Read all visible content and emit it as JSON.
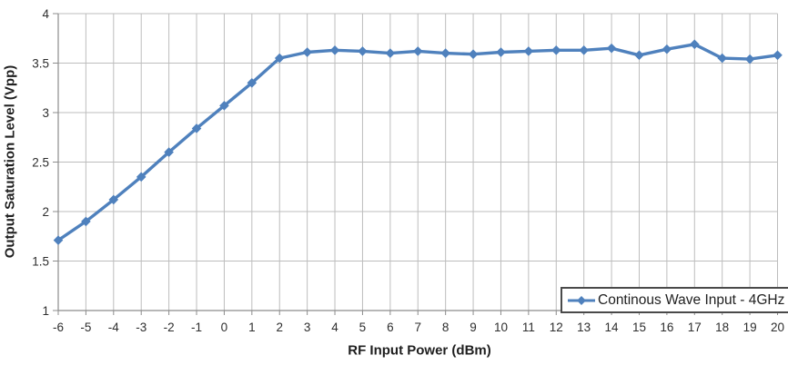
{
  "chart_data": {
    "type": "line",
    "title": "",
    "xlabel": "RF Input Power (dBm)",
    "ylabel": "Output Saturation Level (Vpp)",
    "x": [
      -6,
      -5,
      -4,
      -3,
      -2,
      -1,
      0,
      1,
      2,
      3,
      4,
      5,
      6,
      7,
      8,
      9,
      10,
      11,
      12,
      13,
      14,
      15,
      16,
      17,
      18,
      19,
      20
    ],
    "series": [
      {
        "name": "Continous Wave Input - 4GHz",
        "marker": "diamond",
        "values": [
          1.71,
          1.9,
          2.12,
          2.35,
          2.6,
          2.84,
          3.07,
          3.3,
          3.55,
          3.61,
          3.63,
          3.62,
          3.6,
          3.62,
          3.6,
          3.59,
          3.61,
          3.62,
          3.63,
          3.63,
          3.65,
          3.58,
          3.64,
          3.69,
          3.55,
          3.54,
          3.58
        ]
      }
    ],
    "xlim": [
      -6,
      20
    ],
    "ylim": [
      1,
      4
    ],
    "xticks": [
      -6,
      -5,
      -4,
      -3,
      -2,
      -1,
      0,
      1,
      2,
      3,
      4,
      5,
      6,
      7,
      8,
      9,
      10,
      11,
      12,
      13,
      14,
      15,
      16,
      17,
      18,
      19,
      20
    ],
    "yticks": [
      1,
      1.5,
      2,
      2.5,
      3,
      3.5,
      4
    ],
    "grid": "both",
    "legend": {
      "label": "Continous Wave Input - 4GHz",
      "position": "inside-bottom-right"
    },
    "colors": {
      "series": "#4F81BD",
      "gridline": "#BDBDBD",
      "axis": "#8C8C8C",
      "text": "#1F1F1F",
      "legend_border": "#4A4A4A",
      "background": "#FFFFFF"
    }
  }
}
